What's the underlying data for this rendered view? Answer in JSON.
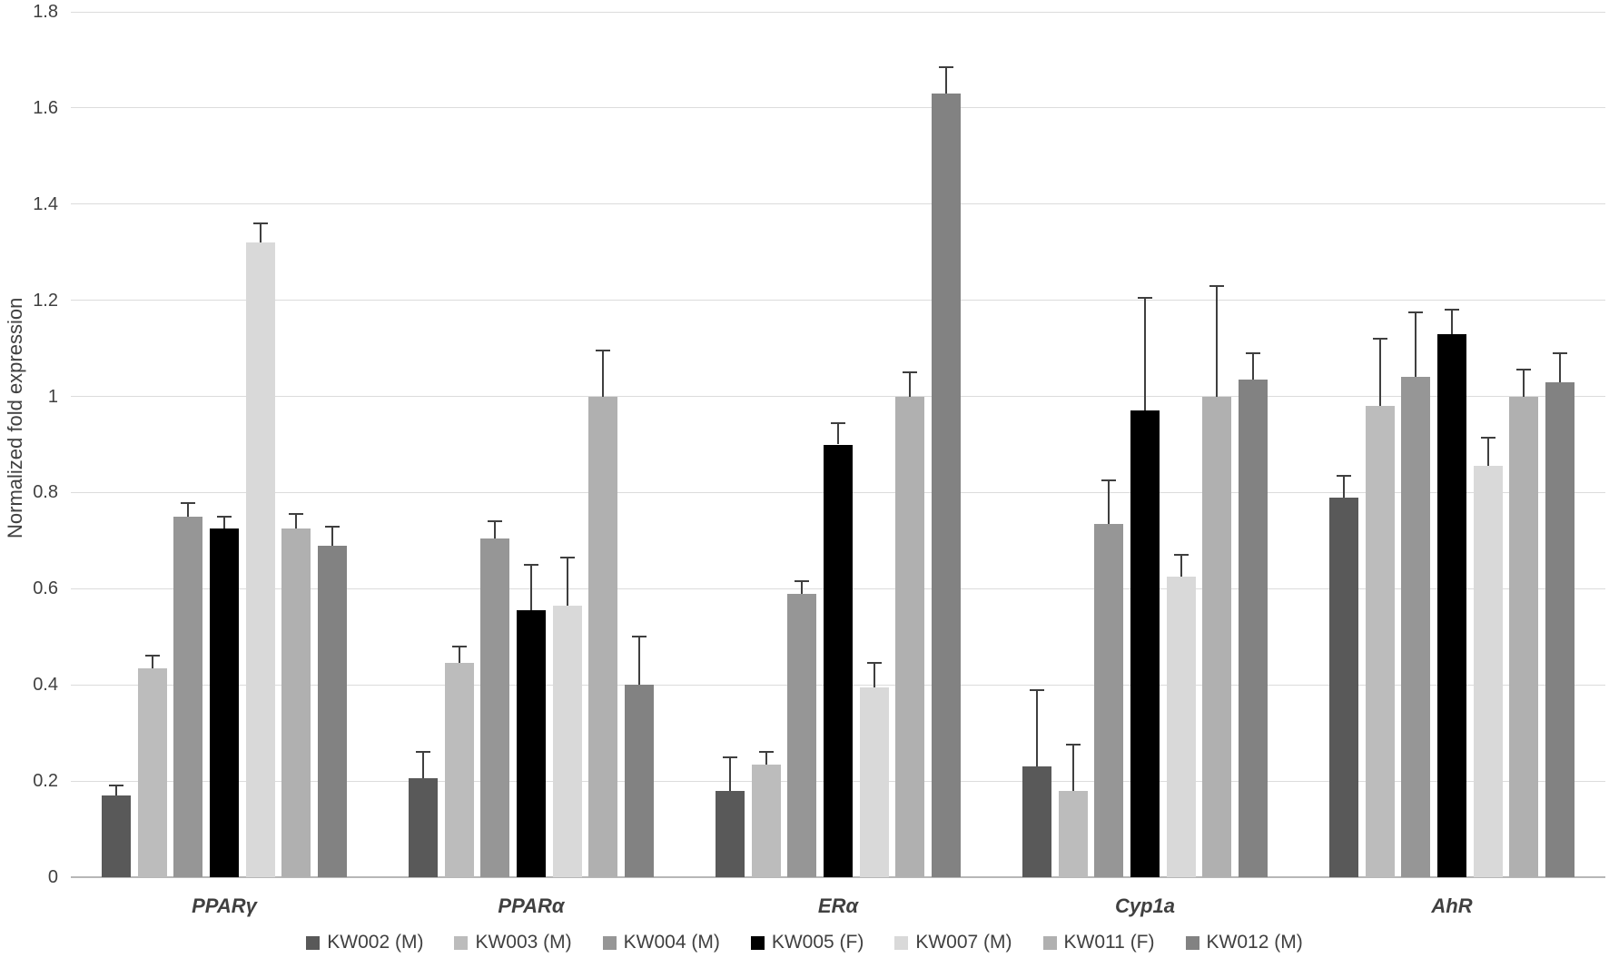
{
  "chart_data": {
    "type": "bar",
    "title": "",
    "xlabel": "",
    "ylabel": "Normalized fold expression",
    "categories": [
      "PPARγ",
      "PPARα",
      "ERα",
      "Cyp1a",
      "AhR"
    ],
    "ylim": [
      0,
      1.8
    ],
    "ytick_labels": [
      "0",
      "0.2",
      "0.4",
      "0.6",
      "0.8",
      "1",
      "1.2",
      "1.4",
      "1.6",
      "1.8"
    ],
    "ytick_values": [
      0,
      0.2,
      0.4,
      0.6,
      0.8,
      1.0,
      1.2,
      1.4,
      1.6,
      1.8
    ],
    "grid": true,
    "legend_position": "bottom",
    "error_bars": "upper",
    "series": [
      {
        "name": "KW002 (M)",
        "color": "#595959",
        "values": [
          0.17,
          0.205,
          0.18,
          0.23,
          0.79
        ],
        "errors": [
          0.02,
          0.055,
          0.07,
          0.16,
          0.045
        ]
      },
      {
        "name": "KW003 (M)",
        "color": "#bcbcbc",
        "values": [
          0.435,
          0.445,
          0.235,
          0.18,
          0.98
        ],
        "errors": [
          0.025,
          0.035,
          0.025,
          0.095,
          0.14
        ]
      },
      {
        "name": "KW004 (M)",
        "color": "#969696",
        "values": [
          0.75,
          0.705,
          0.59,
          0.735,
          1.04
        ],
        "errors": [
          0.028,
          0.035,
          0.025,
          0.09,
          0.135
        ]
      },
      {
        "name": "KW005 (F)",
        "color": "#000000",
        "values": [
          0.725,
          0.555,
          0.9,
          0.97,
          1.13
        ],
        "errors": [
          0.025,
          0.095,
          0.045,
          0.235,
          0.05
        ]
      },
      {
        "name": "KW007 (M)",
        "color": "#d9d9d9",
        "values": [
          1.32,
          0.565,
          0.395,
          0.625,
          0.855
        ],
        "errors": [
          0.04,
          0.1,
          0.05,
          0.045,
          0.06
        ]
      },
      {
        "name": "KW011 (F)",
        "color": "#b0b0b0",
        "values": [
          0.725,
          1.0,
          1.0,
          1.0,
          1.0
        ],
        "errors": [
          0.03,
          0.095,
          0.05,
          0.23,
          0.055
        ]
      },
      {
        "name": "KW012 (M)",
        "color": "#828282",
        "values": [
          0.69,
          0.4,
          1.63,
          1.035,
          1.03
        ],
        "errors": [
          0.04,
          0.1,
          0.055,
          0.055,
          0.06
        ]
      }
    ],
    "colors": {
      "gridline": "#dcdcdc",
      "axis_line": "#b7b7b7",
      "text": "#404040",
      "error_bar": "#3f3f3f",
      "background": "#ffffff"
    }
  }
}
